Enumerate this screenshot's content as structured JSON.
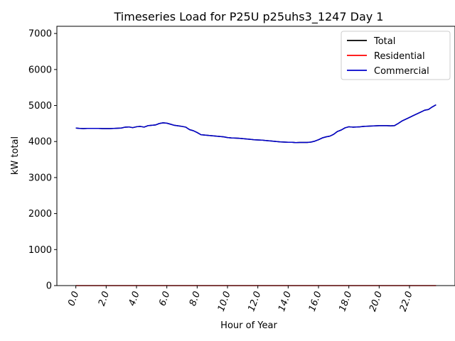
{
  "chart_data": {
    "type": "line",
    "title": "Timeseries Load for P25U p25uhs3_1247  Day 1",
    "xlabel": "Hour of Year",
    "ylabel": "kW total",
    "xlim": [
      -1.25,
      25.0
    ],
    "ylim": [
      0,
      7200
    ],
    "xticks": [
      0,
      2,
      4,
      6,
      8,
      10,
      12,
      14,
      16,
      18,
      20,
      22
    ],
    "xtick_labels": [
      "0.0",
      "2.0",
      "4.0",
      "6.0",
      "8.0",
      "10.0",
      "12.0",
      "14.0",
      "16.0",
      "18.0",
      "20.0",
      "22.0"
    ],
    "yticks": [
      0,
      1000,
      2000,
      3000,
      4000,
      5000,
      6000,
      7000
    ],
    "ytick_labels": [
      "0",
      "1000",
      "2000",
      "3000",
      "4000",
      "5000",
      "6000",
      "7000"
    ],
    "legend_position": "top-right",
    "x": [
      0.0,
      0.25,
      0.5,
      0.75,
      1.0,
      1.25,
      1.5,
      1.75,
      2.0,
      2.25,
      2.5,
      2.75,
      3.0,
      3.25,
      3.5,
      3.75,
      4.0,
      4.25,
      4.5,
      4.75,
      5.0,
      5.25,
      5.5,
      5.75,
      6.0,
      6.25,
      6.5,
      6.75,
      7.0,
      7.25,
      7.5,
      7.75,
      8.0,
      8.25,
      8.5,
      8.75,
      9.0,
      9.25,
      9.5,
      9.75,
      10.0,
      10.25,
      10.5,
      10.75,
      11.0,
      11.25,
      11.5,
      11.75,
      12.0,
      12.25,
      12.5,
      12.75,
      13.0,
      13.25,
      13.5,
      13.75,
      14.0,
      14.25,
      14.5,
      14.75,
      15.0,
      15.25,
      15.5,
      15.75,
      16.0,
      16.25,
      16.5,
      16.75,
      17.0,
      17.25,
      17.5,
      17.75,
      18.0,
      18.25,
      18.5,
      18.75,
      19.0,
      19.25,
      19.5,
      19.75,
      20.0,
      20.25,
      20.5,
      20.75,
      21.0,
      21.25,
      21.5,
      21.75,
      22.0,
      22.25,
      22.5,
      22.75,
      23.0,
      23.25,
      23.5,
      23.75
    ],
    "series": [
      {
        "name": "Total",
        "color": "#000000",
        "values": [
          4375,
          4365,
          4360,
          4365,
          4365,
          4365,
          4365,
          4360,
          4360,
          4360,
          4365,
          4370,
          4375,
          4400,
          4405,
          4385,
          4410,
          4420,
          4400,
          4440,
          4450,
          4460,
          4500,
          4520,
          4510,
          4480,
          4450,
          4435,
          4420,
          4400,
          4330,
          4300,
          4250,
          4190,
          4180,
          4170,
          4160,
          4150,
          4140,
          4130,
          4110,
          4100,
          4095,
          4090,
          4080,
          4070,
          4060,
          4050,
          4045,
          4040,
          4030,
          4020,
          4010,
          4000,
          3990,
          3985,
          3980,
          3980,
          3970,
          3975,
          3975,
          3975,
          3985,
          4010,
          4050,
          4100,
          4130,
          4150,
          4200,
          4280,
          4320,
          4380,
          4410,
          4400,
          4405,
          4410,
          4420,
          4425,
          4430,
          4435,
          4440,
          4440,
          4440,
          4435,
          4440,
          4500,
          4570,
          4620,
          4670,
          4720,
          4770,
          4820,
          4870,
          4890,
          4960,
          5020
        ]
      },
      {
        "name": "Residential",
        "color": "#ff0000",
        "values": [
          0,
          0,
          0,
          0,
          0,
          0,
          0,
          0,
          0,
          0,
          0,
          0,
          0,
          0,
          0,
          0,
          0,
          0,
          0,
          0,
          0,
          0,
          0,
          0,
          0,
          0,
          0,
          0,
          0,
          0,
          0,
          0,
          0,
          0,
          0,
          0,
          0,
          0,
          0,
          0,
          0,
          0,
          0,
          0,
          0,
          0,
          0,
          0,
          0,
          0,
          0,
          0,
          0,
          0,
          0,
          0,
          0,
          0,
          0,
          0,
          0,
          0,
          0,
          0,
          0,
          0,
          0,
          0,
          0,
          0,
          0,
          0,
          0,
          0,
          0,
          0,
          0,
          0,
          0,
          0,
          0,
          0,
          0,
          0,
          0,
          0,
          0,
          0,
          0,
          0,
          0,
          0,
          0,
          0,
          0,
          0
        ]
      },
      {
        "name": "Commercial",
        "color": "#0000cc",
        "values": [
          4375,
          4365,
          4360,
          4365,
          4365,
          4365,
          4365,
          4360,
          4360,
          4360,
          4365,
          4370,
          4375,
          4400,
          4405,
          4385,
          4410,
          4420,
          4400,
          4440,
          4450,
          4460,
          4500,
          4520,
          4510,
          4480,
          4450,
          4435,
          4420,
          4400,
          4330,
          4300,
          4250,
          4190,
          4180,
          4170,
          4160,
          4150,
          4140,
          4130,
          4110,
          4100,
          4095,
          4090,
          4080,
          4070,
          4060,
          4050,
          4045,
          4040,
          4030,
          4020,
          4010,
          4000,
          3990,
          3985,
          3980,
          3980,
          3970,
          3975,
          3975,
          3975,
          3985,
          4010,
          4050,
          4100,
          4130,
          4150,
          4200,
          4280,
          4320,
          4380,
          4410,
          4400,
          4405,
          4410,
          4420,
          4425,
          4430,
          4435,
          4440,
          4440,
          4440,
          4435,
          4440,
          4500,
          4570,
          4620,
          4670,
          4720,
          4770,
          4820,
          4870,
          4890,
          4960,
          5020
        ]
      }
    ]
  }
}
